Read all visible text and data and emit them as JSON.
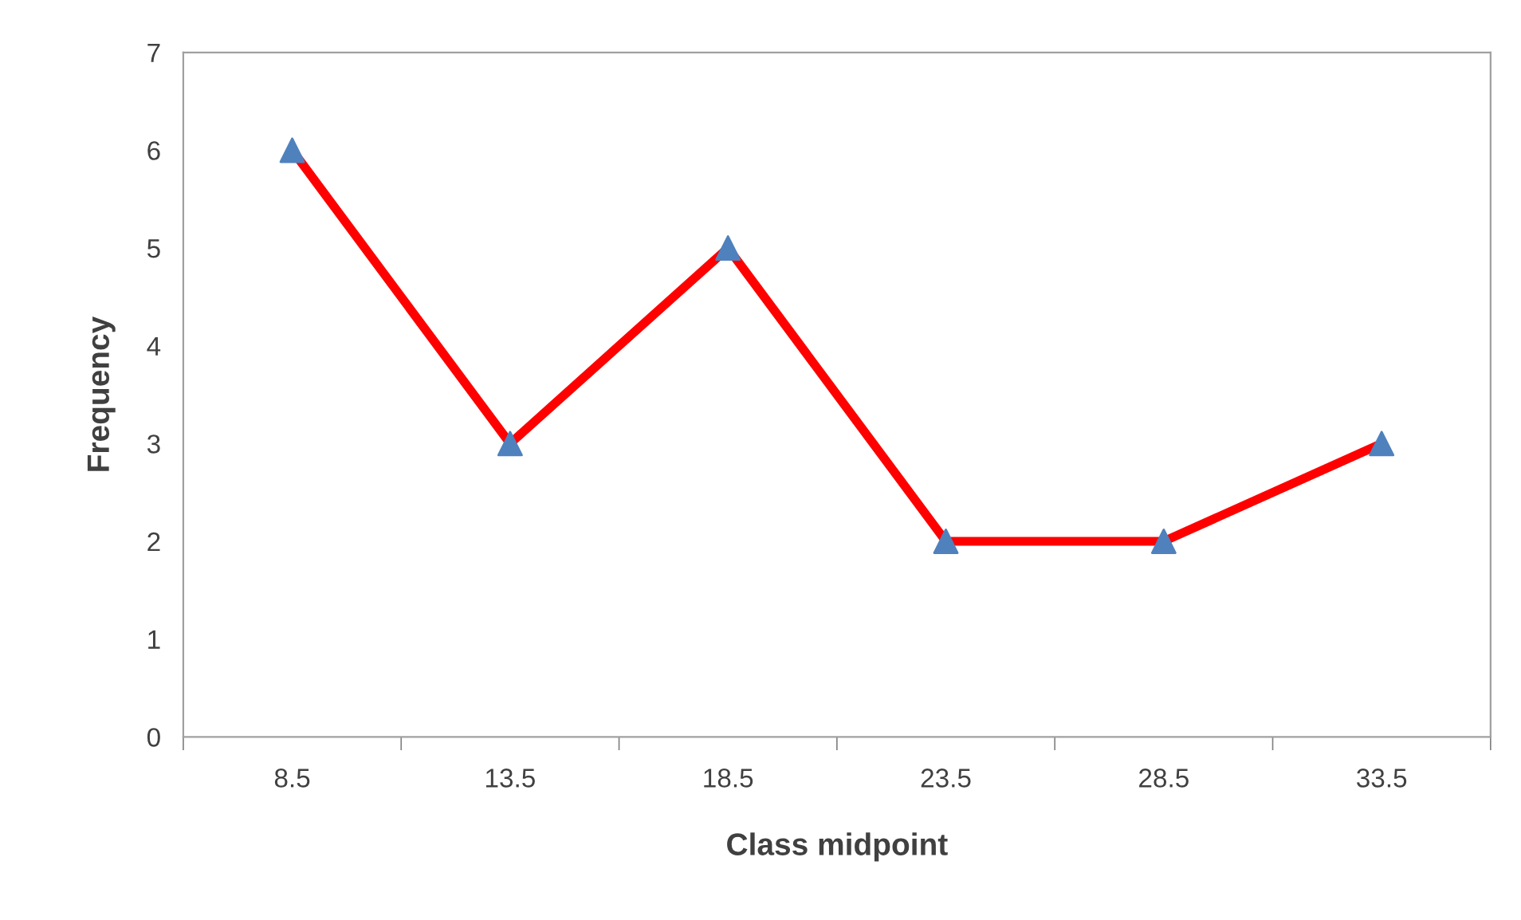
{
  "chart_data": {
    "type": "line",
    "xlabel": "Class midpoint",
    "ylabel": "Frequency",
    "categories": [
      "8.5",
      "13.5",
      "18.5",
      "23.5",
      "28.5",
      "33.5"
    ],
    "series": [
      {
        "color": "#ff0000",
        "colors": [
          "#4f81bd",
          "#4f81bd",
          "#4f81bd",
          "#4f81bd",
          "#4f81bd",
          "#4f81bd"
        ],
        "values": [
          6,
          3,
          5,
          2,
          2,
          3
        ]
      }
    ],
    "ylim": [
      0,
      7
    ],
    "yticks": [
      0,
      1,
      2,
      3,
      4,
      5,
      6,
      7
    ],
    "grid": false,
    "legend": false,
    "marker": "triangle",
    "line_style": "solid"
  }
}
